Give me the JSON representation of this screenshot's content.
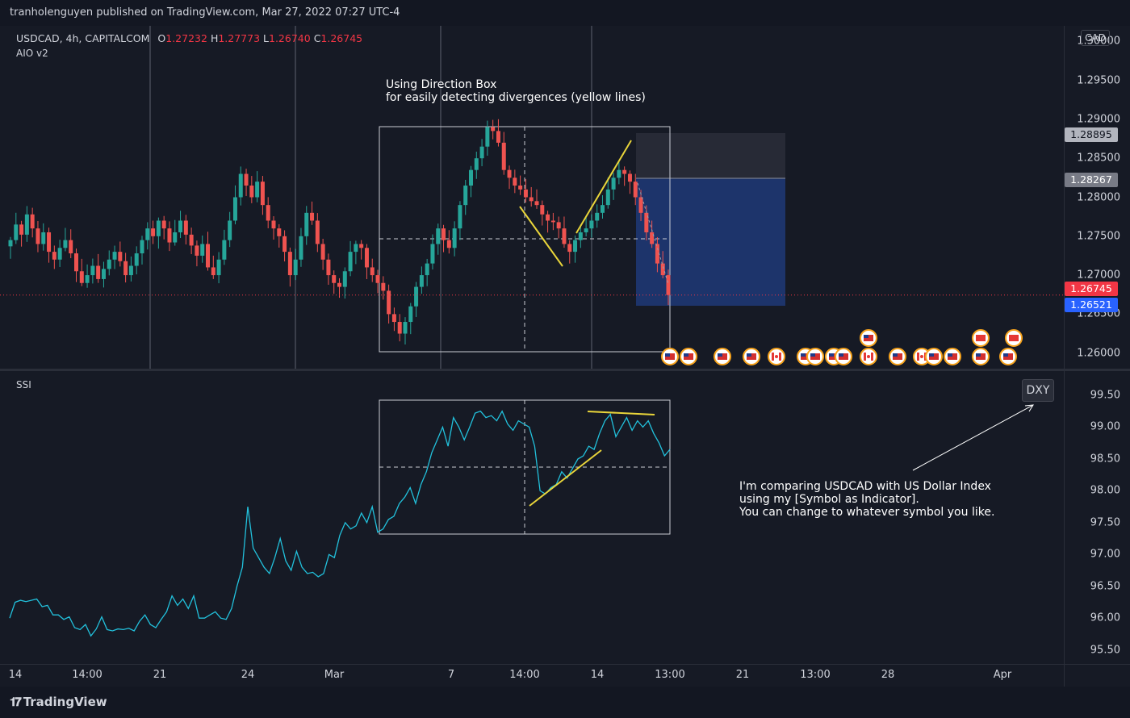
{
  "publish_bar": {
    "text": "tranholenguyen published on TradingView.com, Mar 27, 2022 07:27 UTC-4"
  },
  "legend": {
    "symbol": "USDCAD, 4h, CAPITALCOM",
    "open_label": "O",
    "open": "1.27232",
    "high_label": "H",
    "high": "1.27773",
    "low_label": "L",
    "low": "1.26740",
    "close_label": "C",
    "close": "1.26745",
    "indicator": "AIO v2"
  },
  "annotations": {
    "direction_box_line1": "Using Direction Box",
    "direction_box_line2": "for easily detecting divergences (yellow lines)",
    "compare_line1": "I'm comparing USDCAD with US Dollar Index",
    "compare_line2": "using my [Symbol as Indicator].",
    "compare_line3": "You can change to whatever symbol you like."
  },
  "price_axis": {
    "currency": "CAD",
    "ticks": [
      "1.30000",
      "1.29500",
      "1.29000",
      "1.28500",
      "1.28000",
      "1.27500",
      "1.27000",
      "1.26500",
      "1.26000"
    ],
    "labels": {
      "top": "1.28895",
      "mid": "1.28267",
      "current": "1.26745",
      "bottom": "1.26521"
    }
  },
  "indicator": {
    "name": "SSI",
    "symbol_badge": "DXY",
    "ticks": [
      "99.50",
      "99.00",
      "98.50",
      "98.00",
      "97.50",
      "97.00",
      "96.50",
      "96.00",
      "95.50"
    ]
  },
  "time_axis": {
    "ticks": [
      "14",
      "14:00",
      "21",
      "24",
      "Mar",
      "7",
      "14:00",
      "14",
      "13:00",
      "21",
      "13:00",
      "28",
      "Apr"
    ]
  },
  "colors": {
    "bull": "#26a69a",
    "bear": "#ef5350",
    "ssi_line": "#22c1dc",
    "divergence": "#e9d53a",
    "current_price": "#f23645",
    "stop_zone": "#2a2e39",
    "target_zone": "#1f3a78"
  },
  "footer": {
    "brand": "TradingView",
    "logo_icon": "tradingview-logo-icon"
  },
  "chart_data": {
    "type": "candlestick",
    "symbol": "USDCAD",
    "timeframe": "4h",
    "ylim": [
      1.258,
      1.302
    ],
    "close_series": [
      1.2745,
      1.2765,
      1.2752,
      1.2778,
      1.276,
      1.274,
      1.2755,
      1.273,
      1.272,
      1.2735,
      1.2745,
      1.2728,
      1.2705,
      1.269,
      1.27,
      1.2712,
      1.2695,
      1.2708,
      1.272,
      1.273,
      1.2718,
      1.27,
      1.2712,
      1.2728,
      1.2745,
      1.276,
      1.275,
      1.277,
      1.276,
      1.2742,
      1.2755,
      1.277,
      1.2752,
      1.2738,
      1.2725,
      1.274,
      1.271,
      1.27,
      1.272,
      1.2745,
      1.277,
      1.28,
      1.283,
      1.2815,
      1.28,
      1.282,
      1.279,
      1.277,
      1.276,
      1.275,
      1.273,
      1.27,
      1.272,
      1.275,
      1.278,
      1.277,
      1.274,
      1.272,
      1.27,
      1.269,
      1.2685,
      1.2705,
      1.273,
      1.274,
      1.2735,
      1.271,
      1.27,
      1.269,
      1.268,
      1.265,
      1.264,
      1.2625,
      1.264,
      1.266,
      1.2685,
      1.27,
      1.2715,
      1.274,
      1.276,
      1.2745,
      1.2735,
      1.276,
      1.279,
      1.2815,
      1.2835,
      1.285,
      1.2865,
      1.289,
      1.2885,
      1.287,
      1.2835,
      1.2825,
      1.2815,
      1.281,
      1.28,
      1.2795,
      1.279,
      1.2778,
      1.277,
      1.2768,
      1.276,
      1.274,
      1.273,
      1.2745,
      1.2755,
      1.276,
      1.277,
      1.278,
      1.279,
      1.281,
      1.2825,
      1.2835,
      1.283,
      1.282,
      1.28,
      1.278,
      1.2755,
      1.274,
      1.2715,
      1.27,
      1.26745
    ],
    "ssi_values": [
      96.0,
      96.25,
      96.28,
      96.26,
      96.28,
      96.3,
      96.18,
      96.2,
      96.05,
      96.05,
      95.98,
      96.02,
      95.85,
      95.82,
      95.9,
      95.72,
      95.83,
      96.02,
      95.82,
      95.8,
      95.83,
      95.82,
      95.84,
      95.8,
      95.95,
      96.05,
      95.9,
      95.85,
      95.98,
      96.1,
      96.35,
      96.2,
      96.3,
      96.15,
      96.35,
      96.0,
      96.0,
      96.05,
      96.1,
      96.0,
      95.98,
      96.15,
      96.5,
      96.8,
      97.75,
      97.1,
      96.95,
      96.8,
      96.7,
      96.95,
      97.25,
      96.9,
      96.75,
      97.05,
      96.8,
      96.7,
      96.72,
      96.65,
      96.7,
      97.0,
      96.95,
      97.3,
      97.5,
      97.4,
      97.45,
      97.65,
      97.5,
      97.75,
      97.35,
      97.4,
      97.55,
      97.6,
      97.8,
      97.9,
      98.05,
      97.8,
      98.1,
      98.3,
      98.6,
      98.8,
      99.0,
      98.7,
      99.15,
      99.0,
      98.8,
      99.0,
      99.22,
      99.25,
      99.15,
      99.18,
      99.1,
      99.25,
      99.05,
      98.95,
      99.1,
      99.05,
      99.0,
      98.7,
      98.0,
      97.95,
      98.05,
      98.1,
      98.3,
      98.2,
      98.35,
      98.5,
      98.55,
      98.7,
      98.65,
      98.9,
      99.1,
      99.2,
      98.85,
      99.0,
      99.15,
      98.95,
      99.1,
      99.0,
      99.1,
      98.9,
      98.75,
      98.55,
      98.65
    ]
  }
}
